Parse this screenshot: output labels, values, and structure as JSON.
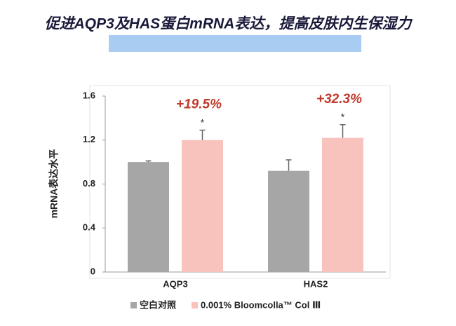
{
  "chart_data": {
    "type": "bar",
    "title": "促进AQP3及HAS蛋白mRNA表达，提高皮肤内生保湿力",
    "y_label": "mRNA表达水平",
    "categories": [
      "AQP3",
      "HAS2"
    ],
    "series": [
      {
        "name": "空白对照",
        "color": "#a6a6a6",
        "values": [
          1.0,
          0.92
        ],
        "errors": [
          0.01,
          0.1
        ]
      },
      {
        "name": "0.001% Bloomcolla™ Col Ⅲ",
        "color": "#f8c3bc",
        "values": [
          1.2,
          1.22
        ],
        "errors": [
          0.09,
          0.12
        ],
        "significance": [
          "*",
          "*"
        ]
      }
    ],
    "annotations": [
      "+19.5%",
      "+32.3%"
    ],
    "annotation_color": "#c0392b",
    "ylim": [
      0,
      1.6
    ],
    "yticks": [
      0,
      0.4,
      0.8,
      1.2,
      1.6
    ]
  }
}
